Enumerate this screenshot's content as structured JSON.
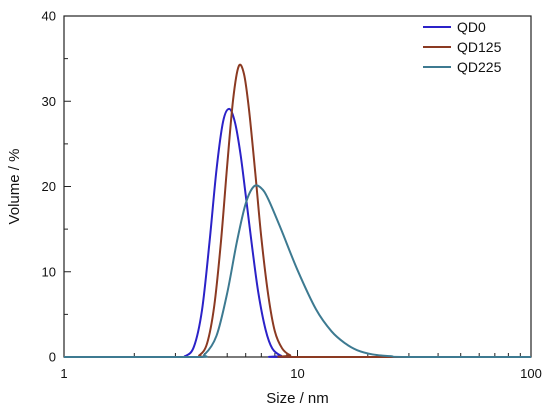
{
  "chart_data": {
    "type": "line",
    "title": "",
    "xlabel": "Size / nm",
    "ylabel": "Volume / %",
    "x_scale": "log",
    "xlim": [
      1,
      100
    ],
    "ylim": [
      0,
      40
    ],
    "x_ticks": [
      1,
      10,
      100
    ],
    "x_tick_labels": [
      "1",
      "10",
      "100"
    ],
    "y_ticks": [
      0,
      10,
      20,
      30,
      40
    ],
    "y_tick_labels": [
      "0",
      "10",
      "20",
      "30",
      "40"
    ],
    "grid": false,
    "legend_position": "top-right",
    "series": [
      {
        "name": "QD0",
        "color": "#2b22c8",
        "points": [
          [
            1,
            0
          ],
          [
            3.0,
            0
          ],
          [
            3.3,
            0.1
          ],
          [
            3.6,
            1.2
          ],
          [
            3.9,
            5.5
          ],
          [
            4.2,
            13.5
          ],
          [
            4.5,
            22.0
          ],
          [
            4.8,
            27.6
          ],
          [
            5.1,
            29.1
          ],
          [
            5.4,
            27.5
          ],
          [
            5.7,
            23.8
          ],
          [
            6.0,
            19.0
          ],
          [
            6.4,
            12.8
          ],
          [
            6.8,
            7.5
          ],
          [
            7.3,
            3.2
          ],
          [
            7.8,
            1.0
          ],
          [
            8.5,
            0.15
          ],
          [
            9.2,
            0
          ],
          [
            100,
            0
          ]
        ]
      },
      {
        "name": "QD125",
        "color": "#8b3a22",
        "points": [
          [
            1,
            0
          ],
          [
            3.5,
            0
          ],
          [
            3.8,
            0.2
          ],
          [
            4.1,
            1.6
          ],
          [
            4.4,
            6.0
          ],
          [
            4.7,
            13.5
          ],
          [
            5.0,
            22.5
          ],
          [
            5.3,
            30.2
          ],
          [
            5.6,
            34.1
          ],
          [
            5.9,
            33.2
          ],
          [
            6.2,
            29.0
          ],
          [
            6.6,
            21.5
          ],
          [
            7.0,
            14.0
          ],
          [
            7.5,
            7.2
          ],
          [
            8.0,
            3.0
          ],
          [
            8.6,
            1.0
          ],
          [
            9.3,
            0.2
          ],
          [
            10.0,
            0
          ],
          [
            100,
            0
          ]
        ]
      },
      {
        "name": "QD225",
        "color": "#3d7a91",
        "points": [
          [
            1,
            0
          ],
          [
            3.6,
            0
          ],
          [
            4.0,
            0.3
          ],
          [
            4.5,
            2.5
          ],
          [
            5.0,
            7.5
          ],
          [
            5.5,
            13.5
          ],
          [
            6.0,
            18.0
          ],
          [
            6.5,
            20.0
          ],
          [
            7.0,
            19.8
          ],
          [
            7.5,
            18.5
          ],
          [
            8.5,
            15.0
          ],
          [
            10.0,
            10.2
          ],
          [
            12.0,
            5.6
          ],
          [
            14.0,
            3.0
          ],
          [
            16.0,
            1.6
          ],
          [
            18.0,
            0.8
          ],
          [
            21.0,
            0.3
          ],
          [
            25.0,
            0.1
          ],
          [
            30.0,
            0
          ],
          [
            100,
            0
          ]
        ]
      }
    ]
  }
}
